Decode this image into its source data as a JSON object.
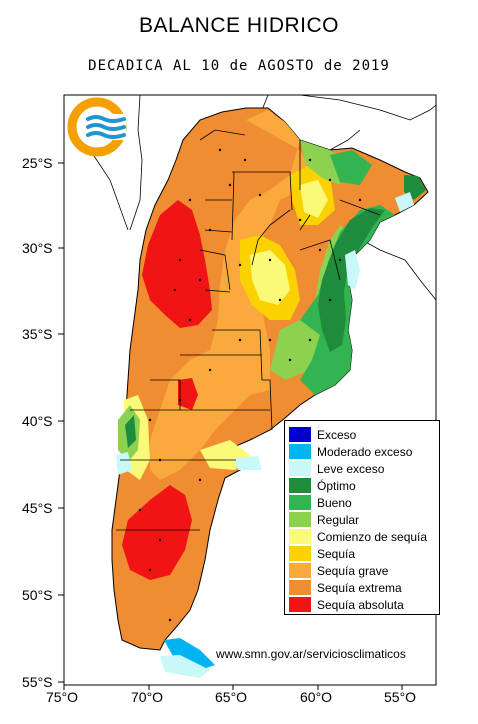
{
  "title": "BALANCE HIDRICO",
  "subtitle": "DECADICA AL 10 de AGOSTO de 2019",
  "credit": "www.smn.gov.ar/serviciosclimaticos",
  "axes": {
    "lon_ticks": [
      "75°O",
      "70°O",
      "65°O",
      "60°O",
      "55°O"
    ],
    "lat_ticks": [
      "25°S",
      "30°S",
      "35°S",
      "40°S",
      "45°S",
      "50°S",
      "55°S"
    ]
  },
  "legend": [
    {
      "label": "Exceso",
      "color": "#0000cc"
    },
    {
      "label": "Moderado exceso",
      "color": "#00b4f0"
    },
    {
      "label": "Leve exceso",
      "color": "#c8f8f8"
    },
    {
      "label": "Óptimo",
      "color": "#1e8c3c"
    },
    {
      "label": "Bueno",
      "color": "#34b450"
    },
    {
      "label": "Regular",
      "color": "#8cd250"
    },
    {
      "label": "Comienzo de sequía",
      "color": "#fafa78"
    },
    {
      "label": "Sequía",
      "color": "#fad200"
    },
    {
      "label": "Sequía grave",
      "color": "#faaa3c"
    },
    {
      "label": "Sequía extrema",
      "color": "#f08c32"
    },
    {
      "label": "Sequía absoluta",
      "color": "#f01414"
    }
  ],
  "logo": {
    "icon": "smn-logo-icon",
    "ring_color": "#f5a000",
    "wave_color": "#1e96d2"
  }
}
